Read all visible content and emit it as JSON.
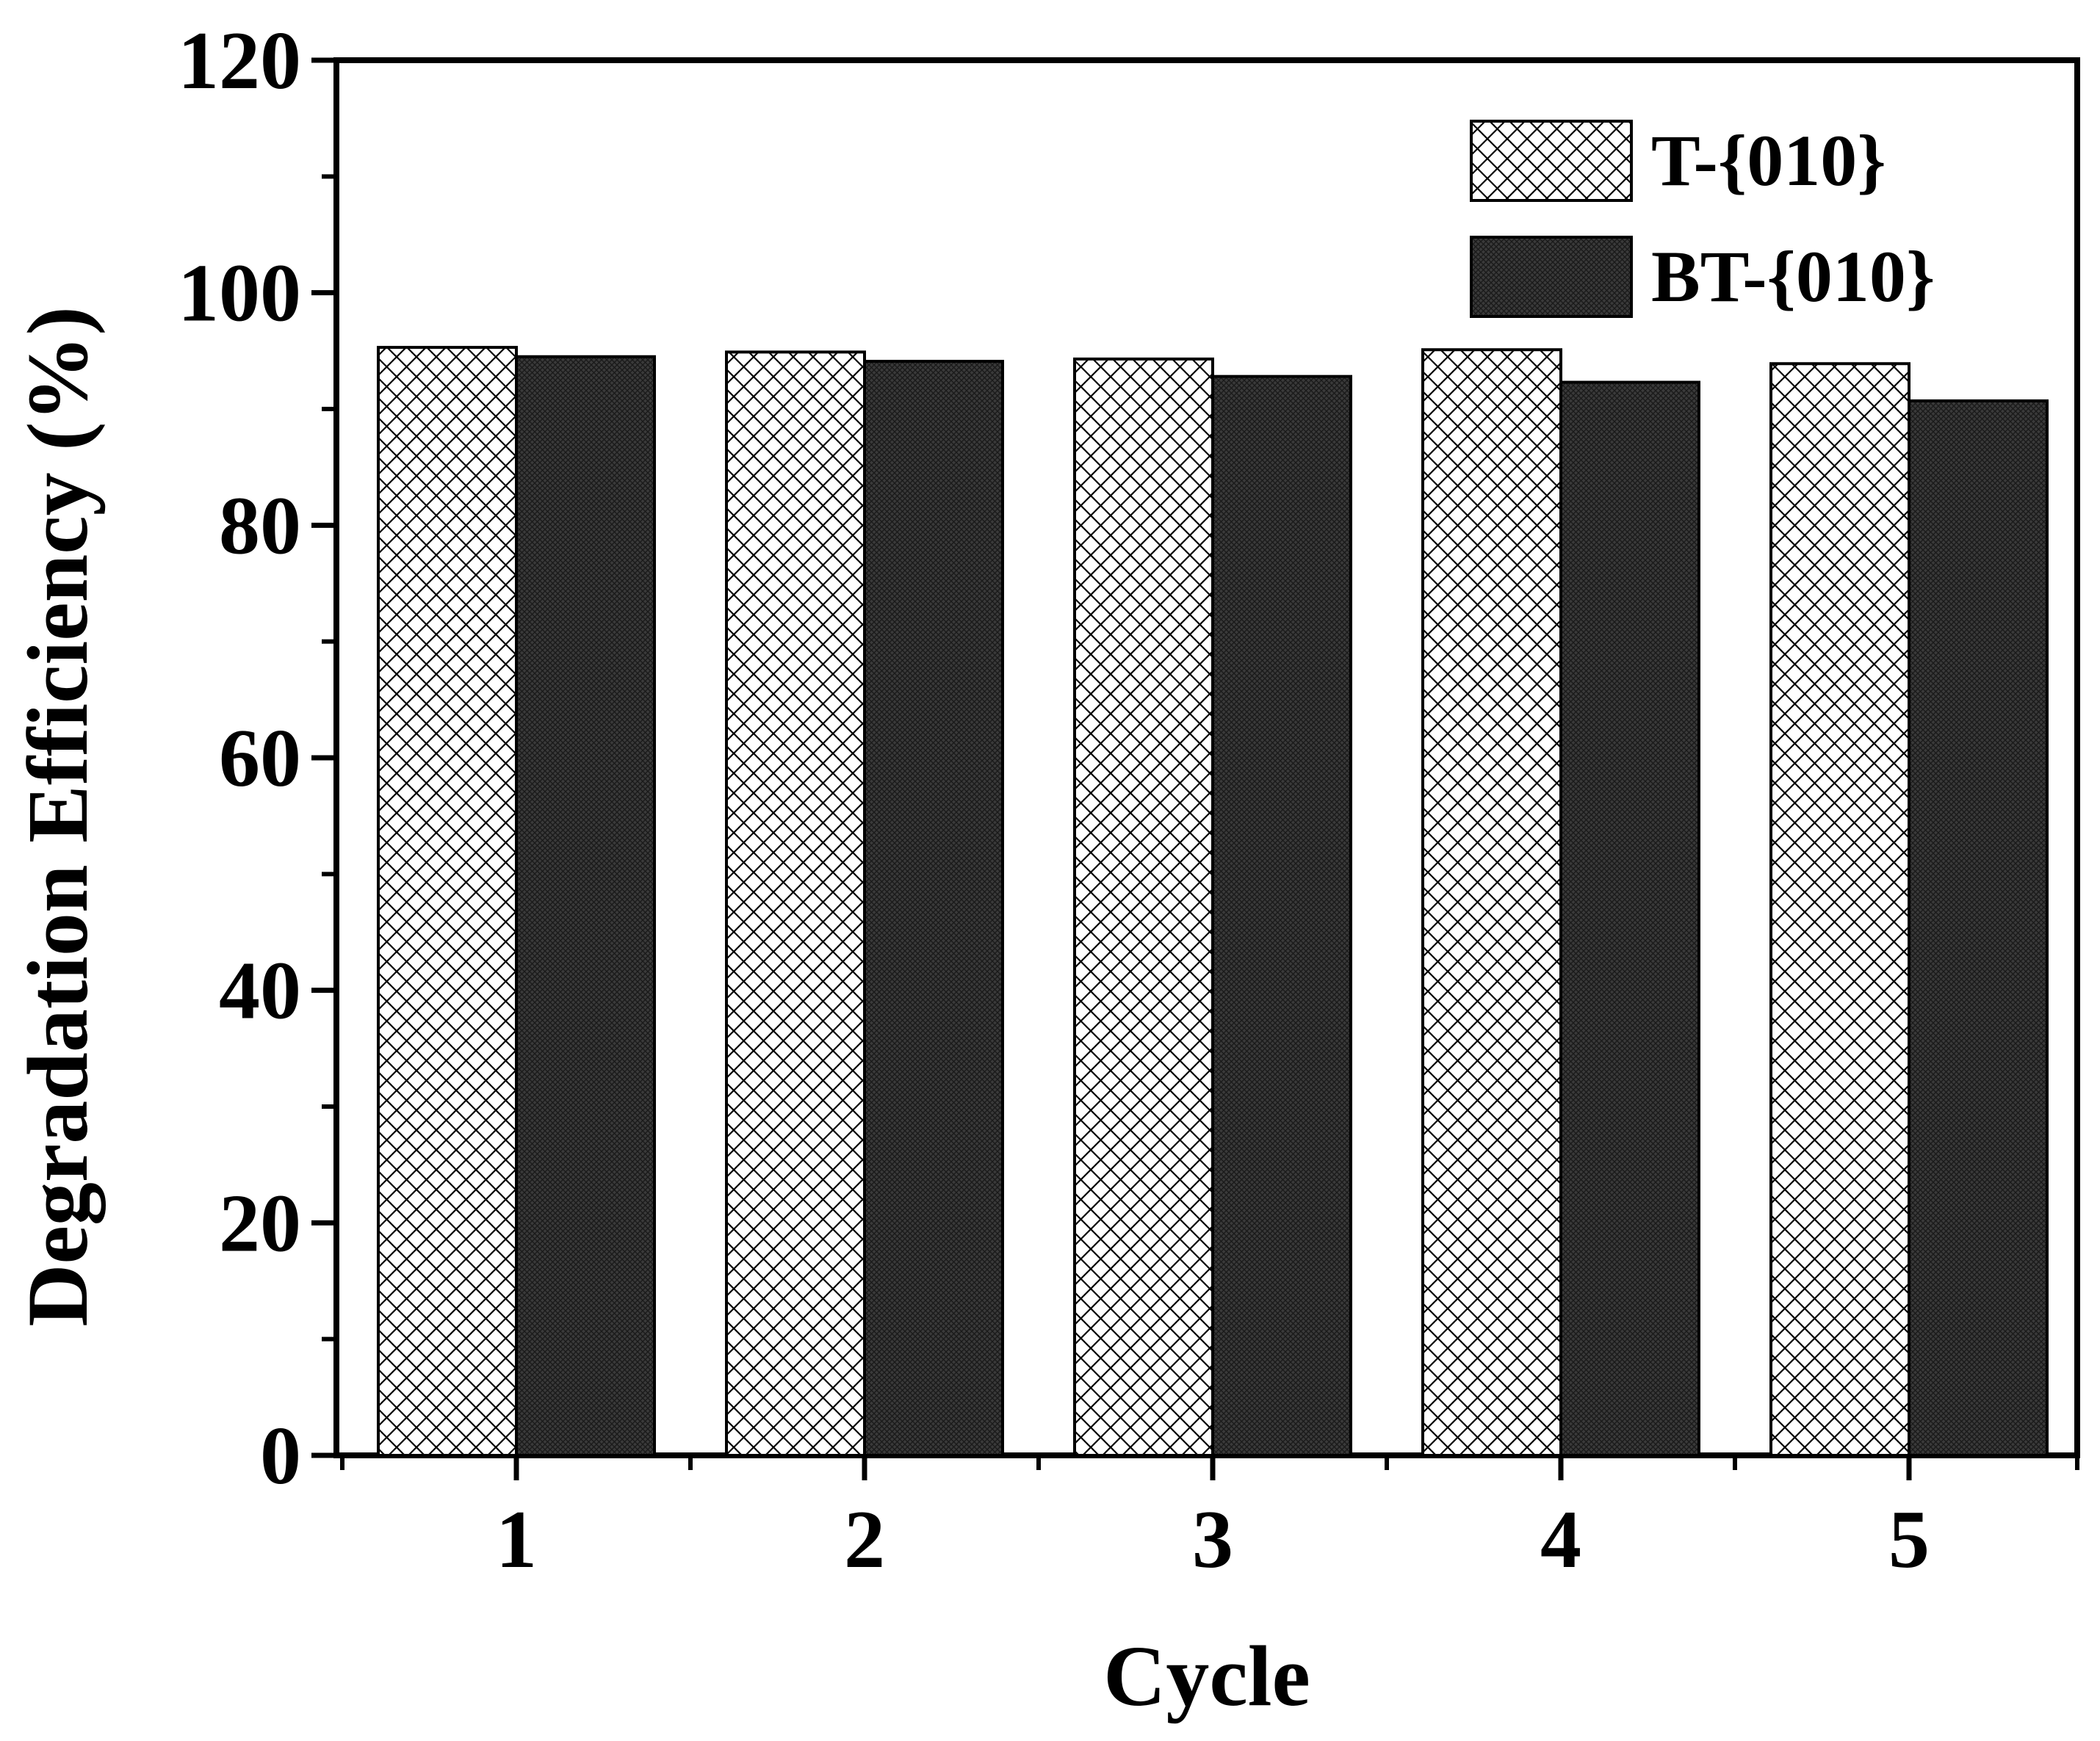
{
  "chart_data": {
    "type": "bar",
    "title": "",
    "xlabel": "Cycle",
    "ylabel": "Degradation Efficiency (%)",
    "ylim": [
      0,
      120
    ],
    "yticks": [
      "0",
      "20",
      "40",
      "60",
      "80",
      "100",
      "120"
    ],
    "categories": [
      "1",
      "2",
      "3",
      "4",
      "5"
    ],
    "series": [
      {
        "name": "T-{010}",
        "pattern": "crosshatch",
        "color": "#ffffff",
        "values": [
          95.3,
          94.9,
          94.3,
          95.1,
          93.9
        ]
      },
      {
        "name": "BT-{010}",
        "pattern": "dense-dark",
        "color": "#3a3a3a",
        "values": [
          94.5,
          94.1,
          92.8,
          92.3,
          90.7
        ]
      }
    ],
    "legend_position": "top-right",
    "grid": false
  }
}
